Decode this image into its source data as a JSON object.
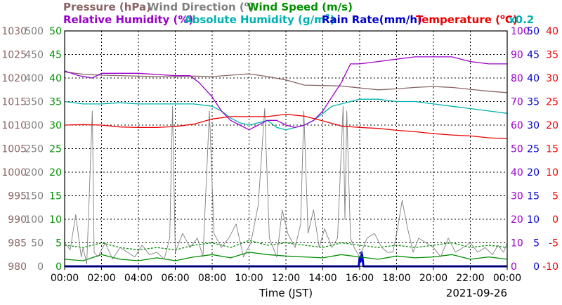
{
  "chart_data": {
    "type": "line",
    "date": "2021-09-26",
    "xlabel": "Time (JST)",
    "x_ticks": [
      "00:00",
      "02:00",
      "04:00",
      "06:00",
      "08:00",
      "10:00",
      "12:00",
      "14:00",
      "16:00",
      "18:00",
      "20:00",
      "22:00",
      "00:00"
    ],
    "x_range_hours": [
      0,
      24
    ],
    "grid": true,
    "legend": [
      {
        "text": "Pressure (hPa)",
        "color": "#8b6464"
      },
      {
        "text": "Wind Direction (",
        "sup": "o",
        "tail": ")",
        "color": "#808080"
      },
      {
        "text": "Wind Speed (m/s)",
        "color": "#009000"
      },
      {
        "text": "Relative Humidity (%)",
        "color": "#9900cc"
      },
      {
        "text": "Absolute Humidity (g/m",
        "sup": "3",
        "tail": ")",
        "color": "#00b0b0"
      },
      {
        "text": "Rain Rate(mm/h)",
        "color": "#0000cc"
      },
      {
        "text": "Temperature (",
        "sup": "o",
        "tail": "C)",
        "color": "#ee0000"
      },
      {
        "text": "x0.2",
        "color": "#00b0b0"
      }
    ],
    "axes": [
      {
        "name": "pressure",
        "side": "left",
        "color": "#8b6464",
        "range": [
          980,
          1030
        ],
        "ticks": [
          "980",
          "985",
          "990",
          "995",
          "1000",
          "1005",
          "1010",
          "1015",
          "1020",
          "1025",
          "1030"
        ]
      },
      {
        "name": "wind_direction",
        "side": "left",
        "color": "#808080",
        "range": [
          0,
          500
        ],
        "ticks": [
          "0",
          "50",
          "100",
          "150",
          "200",
          "250",
          "300",
          "350",
          "400",
          "450",
          "500"
        ]
      },
      {
        "name": "wind_speed",
        "side": "left",
        "color": "#009000",
        "range": [
          0,
          50
        ],
        "ticks": [
          "0",
          "5",
          "10",
          "15",
          "20",
          "25",
          "30",
          "35",
          "40",
          "45",
          "50"
        ]
      },
      {
        "name": "relative_humidity",
        "side": "right",
        "color": "#9900cc",
        "range": [
          0,
          100
        ],
        "ticks": [
          "0",
          "10",
          "20",
          "30",
          "40",
          "50",
          "60",
          "70",
          "80",
          "90",
          "100"
        ]
      },
      {
        "name": "rain_rate",
        "side": "right",
        "color": "#0000cc",
        "range": [
          0,
          50
        ],
        "ticks": [
          "0",
          "5",
          "10",
          "15",
          "20",
          "25",
          "30",
          "35",
          "40",
          "45",
          "50"
        ]
      },
      {
        "name": "temperature",
        "side": "right",
        "color": "#ee0000",
        "range": [
          -10,
          40
        ],
        "ticks": [
          "-10",
          "-5",
          "0",
          "5",
          "10",
          "15",
          "20",
          "25",
          "30",
          "35",
          "40"
        ]
      }
    ],
    "series": [
      {
        "key": "pressure",
        "axis": "pressure",
        "color": "#8b6464",
        "x": [
          0,
          1,
          2,
          3,
          4,
          5,
          6,
          7,
          8,
          9,
          10,
          11,
          12,
          13,
          14,
          15,
          16,
          17,
          18,
          19,
          20,
          21,
          22,
          23,
          24
        ],
        "y": [
          1021.3,
          1020.8,
          1020.6,
          1020.5,
          1020.4,
          1020.3,
          1020.3,
          1020.4,
          1020.3,
          1020.6,
          1020.9,
          1020.3,
          1019.6,
          1018.5,
          1018.4,
          1018.3,
          1017.9,
          1017.5,
          1017.7,
          1018.0,
          1018.2,
          1018.0,
          1017.6,
          1017.2,
          1016.9
        ]
      },
      {
        "key": "relative_humidity",
        "axis": "relative_humidity",
        "color": "#9900cc",
        "x": [
          0,
          0.75,
          1.5,
          2,
          4,
          5,
          6,
          6.8,
          7.3,
          8,
          8.5,
          9,
          9.5,
          10,
          10.5,
          11,
          11.5,
          12,
          12.5,
          13,
          13.5,
          14,
          14.5,
          15,
          15.5,
          16,
          17,
          18,
          19,
          20,
          21,
          22,
          23,
          24
        ],
        "y": [
          83,
          81,
          80,
          82,
          82,
          81.5,
          81,
          81,
          78,
          72,
          66,
          62,
          60,
          58,
          60,
          62,
          62,
          60,
          59,
          60,
          62,
          66,
          72,
          78,
          86,
          86,
          87,
          88,
          89,
          89,
          89,
          87,
          86,
          86
        ]
      },
      {
        "key": "absolute_humidity_x0.2",
        "axis": "relative_humidity",
        "color": "#00b0b0",
        "x": [
          0,
          1,
          2,
          3,
          4,
          5,
          6,
          7,
          8,
          8.5,
          9,
          9.5,
          10,
          10.5,
          11,
          11.5,
          12,
          12.5,
          13,
          13.5,
          14,
          14.5,
          15,
          15.5,
          16,
          17,
          18,
          19,
          20,
          21,
          22,
          23,
          24
        ],
        "y": [
          70,
          69,
          69,
          69.5,
          69,
          69,
          69,
          69,
          68,
          66,
          63,
          61,
          60,
          61,
          62,
          59,
          58,
          59,
          60,
          62,
          65,
          68,
          69,
          70,
          71,
          71,
          70,
          70,
          69,
          68,
          67,
          66,
          65
        ]
      },
      {
        "key": "temperature",
        "axis": "temperature",
        "color": "#ee0000",
        "x": [
          0,
          1,
          2,
          3,
          4,
          5,
          6,
          7,
          8,
          9,
          10,
          11,
          12,
          13,
          14,
          15,
          16,
          17,
          18,
          19,
          20,
          21,
          22,
          23,
          24
        ],
        "y": [
          20,
          20.1,
          20,
          19.6,
          19.5,
          19.5,
          19.7,
          20.2,
          21.3,
          21.8,
          21.8,
          21.8,
          22.3,
          21.9,
          20.9,
          19.8,
          19.5,
          19.3,
          18.9,
          18.6,
          18.2,
          17.9,
          17.7,
          17.3,
          17.1
        ]
      },
      {
        "key": "wind_direction",
        "axis": "wind_direction",
        "color": "#808080",
        "x": [
          0,
          0.3,
          0.6,
          0.9,
          1.0,
          1.2,
          1.5,
          1.6,
          1.8,
          2.2,
          2.6,
          3.0,
          3.4,
          3.8,
          4.2,
          4.6,
          5.0,
          5.4,
          5.7,
          5.85,
          6.0,
          6.4,
          6.8,
          7.2,
          7.5,
          7.85,
          8.1,
          8.5,
          8.9,
          9.3,
          9.7,
          10.1,
          10.5,
          10.85,
          11.1,
          11.5,
          11.8,
          12.1,
          12.5,
          12.8,
          12.97,
          13.2,
          13.5,
          13.8,
          14.1,
          14.5,
          14.8,
          15.1,
          15.2,
          15.3,
          15.5,
          15.7,
          16.0,
          16.4,
          16.8,
          17.2,
          17.5,
          17.8,
          18.1,
          18.3,
          18.6,
          18.9,
          19.2,
          19.6,
          20.0,
          20.4,
          20.8,
          21.2,
          21.6,
          22.0,
          22.4,
          22.8,
          23.2,
          23.5,
          23.8,
          24
        ],
        "y": [
          50,
          35,
          110,
          20,
          40,
          5,
          330,
          30,
          20,
          50,
          15,
          40,
          30,
          20,
          45,
          25,
          30,
          15,
          60,
          340,
          30,
          70,
          40,
          60,
          20,
          330,
          70,
          40,
          60,
          90,
          20,
          50,
          130,
          335,
          60,
          20,
          120,
          70,
          40,
          90,
          330,
          70,
          120,
          40,
          80,
          40,
          60,
          340,
          100,
          330,
          60,
          40,
          20,
          60,
          70,
          40,
          30,
          30,
          90,
          140,
          80,
          30,
          60,
          50,
          40,
          20,
          60,
          30,
          40,
          50,
          30,
          40,
          25,
          45,
          30,
          50
        ]
      },
      {
        "key": "wind_speed_max",
        "axis": "wind_speed",
        "color": "#009000",
        "x": [
          0,
          1,
          2,
          3,
          4,
          5,
          6,
          7,
          8,
          9,
          10,
          11,
          12,
          13,
          14,
          15,
          16,
          17,
          18,
          19,
          20,
          21,
          22,
          23,
          24
        ],
        "y": [
          4.5,
          4,
          5,
          4,
          3.5,
          4,
          3.5,
          4.5,
          5,
          4,
          5.5,
          4.5,
          5,
          4.5,
          4,
          5,
          4.5,
          4,
          4.5,
          4,
          4.5,
          5,
          4,
          4.5,
          4
        ]
      },
      {
        "key": "wind_speed",
        "axis": "wind_speed",
        "color": "#009000",
        "x": [
          0,
          1,
          2,
          3,
          4,
          5,
          6,
          7,
          8,
          9,
          10,
          11,
          12,
          13,
          14,
          15,
          16,
          17,
          18,
          19,
          20,
          21,
          22,
          23,
          24
        ],
        "y": [
          1.5,
          1.2,
          2.5,
          1.5,
          1.2,
          1.8,
          1.2,
          2.0,
          2.5,
          1.8,
          3.0,
          2.5,
          2.2,
          2.0,
          1.8,
          2.5,
          2.0,
          1.5,
          2.2,
          1.8,
          2.0,
          2.5,
          1.5,
          2.0,
          1.5
        ]
      },
      {
        "key": "rain_rate",
        "axis": "rain_rate",
        "color": "#0000cc",
        "x": [
          0,
          15.95,
          16.0,
          16.05,
          16.1,
          16.15,
          16.2,
          24
        ],
        "y": [
          0,
          0,
          2,
          1,
          3,
          2,
          0,
          0
        ]
      }
    ]
  }
}
